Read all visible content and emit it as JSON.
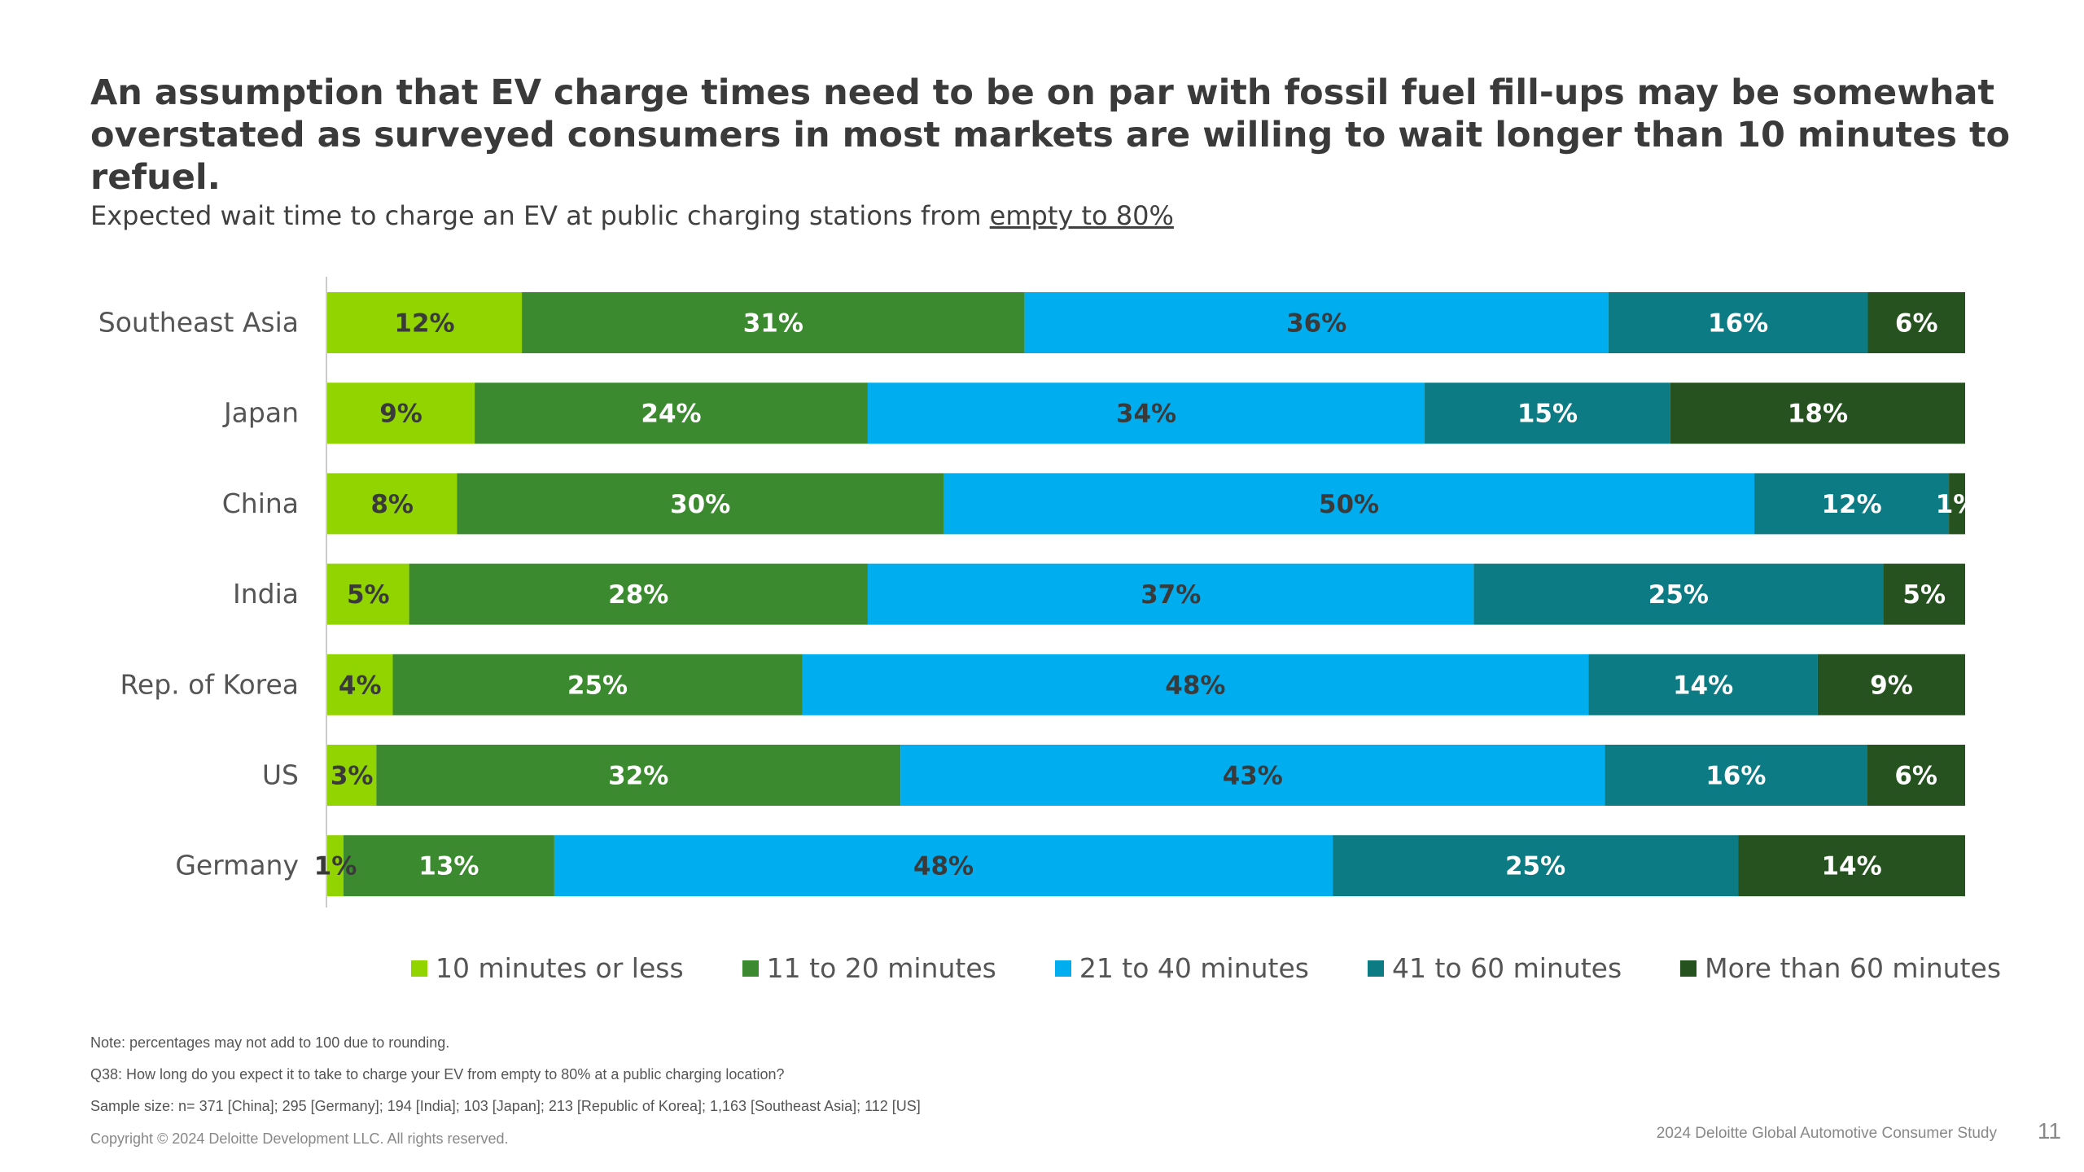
{
  "title": "An assumption that EV charge times need to be on par with fossil fuel fill-ups may be somewhat overstated as surveyed consumers in most markets are willing to wait longer than 10 minutes to refuel.",
  "subtitle_prefix": "Expected wait time to charge an EV at public charging stations from ",
  "subtitle_underlined": "empty to 80%",
  "chart_data": {
    "type": "bar",
    "orientation": "horizontal",
    "stacked": true,
    "normalized": true,
    "categories": [
      "Southeast Asia",
      "Japan",
      "China",
      "India",
      "Rep. of Korea",
      "US",
      "Germany"
    ],
    "series": [
      {
        "name": "10 minutes or less",
        "color": "#92D400",
        "label_color": "#3a3a3a",
        "values": [
          12,
          9,
          8,
          5,
          4,
          3,
          1
        ]
      },
      {
        "name": "11 to 20 minutes",
        "color": "#3B8A2F",
        "label_color": "#ffffff",
        "values": [
          31,
          24,
          30,
          28,
          25,
          32,
          13
        ]
      },
      {
        "name": "21 to 40 minutes",
        "color": "#00AEEF",
        "label_color": "#3a3a3a",
        "values": [
          36,
          34,
          50,
          37,
          48,
          43,
          48
        ]
      },
      {
        "name": "41 to 60 minutes",
        "color": "#0D7B83",
        "label_color": "#ffffff",
        "values": [
          16,
          15,
          12,
          25,
          14,
          16,
          25
        ]
      },
      {
        "name": "More than 60 minutes",
        "color": "#26521F",
        "label_color": "#ffffff",
        "values": [
          6,
          18,
          1,
          5,
          9,
          6,
          14
        ]
      }
    ],
    "value_suffix": "%",
    "legend_position": "bottom",
    "grid": false
  },
  "notes": {
    "note": "Note: percentages may not add to 100 due to rounding.",
    "question": "Q38: How long do you expect it to take to charge your EV from empty to 80% at a public charging location?",
    "sample": "Sample size: n= 371 [China]; 295 [Germany]; 194 [India]; 103 [Japan]; 213 [Republic of Korea]; 1,163 [Southeast Asia]; 112 [US]"
  },
  "footer": {
    "copyright": "Copyright © 2024 Deloitte Development LLC. All rights reserved.",
    "study": "2024 Deloitte Global Automotive Consumer Study",
    "page": "11"
  }
}
